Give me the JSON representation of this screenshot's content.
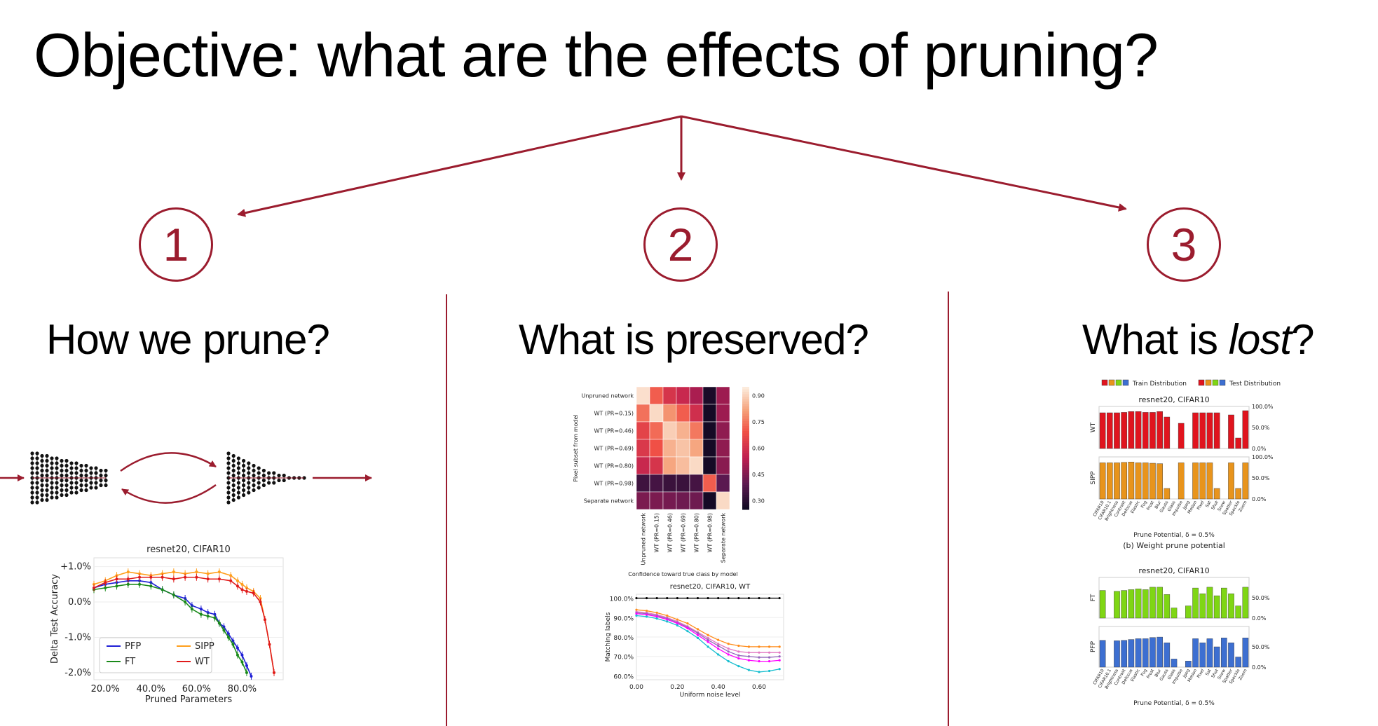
{
  "title": "Objective: what are the effects of pruning?",
  "accent_color": "#9b1c2e",
  "steps": [
    {
      "number": "1",
      "heading": "How we prune?"
    },
    {
      "number": "2",
      "heading": "What is preserved?"
    },
    {
      "number": "3",
      "heading_pre": "What is ",
      "heading_em": "lost",
      "heading_post": "?"
    }
  ],
  "icons": [
    "arrow-down-icon",
    "arrow-left-icon",
    "arrow-right-icon",
    "cycle-arrows-icon",
    "neural-network-icon"
  ],
  "chart_data": [
    {
      "type": "line",
      "title": "resnet20, CIFAR10",
      "xlabel": "Pruned Parameters",
      "ylabel": "Delta Test Accuracy",
      "xticks": [
        "20.0%",
        "40.0%",
        "60.0%",
        "80.0%"
      ],
      "yticks": [
        "+1.0%",
        "0.0%",
        "-1.0%",
        "-2.0%"
      ],
      "xlim": [
        15,
        98
      ],
      "ylim": [
        -2.2,
        1.25
      ],
      "legend": [
        "PFP",
        "SIPP",
        "FT",
        "WT"
      ],
      "legend_placement": "lower-left",
      "series": [
        {
          "name": "PFP",
          "color": "#1f1fd6",
          "x": [
            15,
            20,
            25,
            30,
            35,
            40,
            45,
            50,
            55,
            58,
            62,
            65,
            68,
            70,
            72,
            74,
            76,
            78,
            80,
            82,
            84
          ],
          "y": [
            0.4,
            0.5,
            0.55,
            0.6,
            0.6,
            0.55,
            0.35,
            0.2,
            0.1,
            -0.1,
            -0.2,
            -0.3,
            -0.35,
            -0.6,
            -0.7,
            -0.9,
            -1.1,
            -1.3,
            -1.5,
            -1.8,
            -2.1
          ]
        },
        {
          "name": "SIPP",
          "color": "#ff9f1c",
          "x": [
            15,
            20,
            25,
            30,
            35,
            40,
            45,
            50,
            55,
            60,
            65,
            70,
            75,
            78,
            80,
            82,
            85,
            88,
            90,
            92,
            94
          ],
          "y": [
            0.5,
            0.6,
            0.75,
            0.85,
            0.8,
            0.75,
            0.8,
            0.85,
            0.8,
            0.85,
            0.8,
            0.85,
            0.75,
            0.6,
            0.5,
            0.4,
            0.3,
            0.1,
            -0.5,
            -1.2,
            -2.0
          ]
        },
        {
          "name": "FT",
          "color": "#1a8a1a",
          "x": [
            15,
            20,
            25,
            30,
            35,
            40,
            45,
            50,
            55,
            58,
            62,
            65,
            68,
            70,
            72,
            74,
            76,
            78,
            80,
            82
          ],
          "y": [
            0.35,
            0.4,
            0.45,
            0.5,
            0.5,
            0.45,
            0.35,
            0.2,
            0.0,
            -0.2,
            -0.35,
            -0.4,
            -0.45,
            -0.6,
            -0.8,
            -1.0,
            -1.2,
            -1.5,
            -1.7,
            -2.0
          ]
        },
        {
          "name": "WT",
          "color": "#e01b1b",
          "x": [
            15,
            20,
            25,
            30,
            35,
            40,
            45,
            50,
            55,
            60,
            65,
            70,
            75,
            78,
            80,
            82,
            85,
            88,
            90,
            92,
            94
          ],
          "y": [
            0.4,
            0.55,
            0.65,
            0.65,
            0.7,
            0.7,
            0.7,
            0.65,
            0.7,
            0.7,
            0.65,
            0.65,
            0.6,
            0.45,
            0.35,
            0.3,
            0.25,
            0.0,
            -0.5,
            -1.2,
            -2.0
          ]
        }
      ]
    },
    {
      "type": "heatmap",
      "title": "",
      "rows": [
        "Unpruned network",
        "WT (PR=0.15)",
        "WT (PR=0.46)",
        "WT (PR=0.69)",
        "WT (PR=0.80)",
        "WT (PR=0.98)",
        "Separate network"
      ],
      "cols": [
        "Unpruned network",
        "WT (PR=0.15)",
        "WT (PR=0.46)",
        "WT (PR=0.69)",
        "WT (PR=0.80)",
        "WT (PR=0.98)",
        "Separate network"
      ],
      "xlabel": "Confidence toward true class by model",
      "ylabel": "Pixel subset from model",
      "colorbar_ticks": [
        "0.90",
        "0.75",
        "0.60",
        "0.45",
        "0.30"
      ],
      "vmin": 0.25,
      "vmax": 0.95,
      "values": [
        [
          0.93,
          0.72,
          0.62,
          0.58,
          0.52,
          0.28,
          0.5
        ],
        [
          0.75,
          0.92,
          0.8,
          0.72,
          0.6,
          0.27,
          0.5
        ],
        [
          0.66,
          0.74,
          0.9,
          0.85,
          0.76,
          0.27,
          0.48
        ],
        [
          0.63,
          0.7,
          0.85,
          0.88,
          0.83,
          0.27,
          0.48
        ],
        [
          0.58,
          0.62,
          0.83,
          0.87,
          0.92,
          0.27,
          0.47
        ],
        [
          0.35,
          0.36,
          0.34,
          0.34,
          0.36,
          0.72,
          0.4
        ],
        [
          0.45,
          0.45,
          0.44,
          0.43,
          0.43,
          0.27,
          0.92
        ]
      ]
    },
    {
      "type": "line",
      "title": "resnet20, CIFAR10, WT",
      "xlabel": "Uniform noise level",
      "ylabel": "Matching labels",
      "xticks": [
        "0.00",
        "0.20",
        "0.40",
        "0.60"
      ],
      "yticks": [
        "100.0%",
        "90.0%",
        "80.0%",
        "70.0%",
        "60.0%"
      ],
      "xlim": [
        0,
        0.72
      ],
      "ylim": [
        58,
        102
      ],
      "series": [
        {
          "color": "#000000",
          "x": [
            0,
            0.05,
            0.1,
            0.15,
            0.2,
            0.25,
            0.3,
            0.35,
            0.4,
            0.45,
            0.5,
            0.55,
            0.6,
            0.65,
            0.7
          ],
          "y": [
            100,
            100,
            100,
            100,
            100,
            100,
            100,
            100,
            100,
            100,
            100,
            100,
            100,
            100,
            100
          ]
        },
        {
          "color": "#ff8c1a",
          "x": [
            0,
            0.05,
            0.1,
            0.15,
            0.2,
            0.25,
            0.3,
            0.35,
            0.4,
            0.45,
            0.5,
            0.55,
            0.6,
            0.65,
            0.7
          ],
          "y": [
            94,
            93.5,
            92.5,
            91,
            89,
            87,
            84,
            81,
            78.5,
            76.5,
            75.5,
            75,
            75,
            75,
            75
          ]
        },
        {
          "color": "#e377c2",
          "x": [
            0,
            0.05,
            0.1,
            0.15,
            0.2,
            0.25,
            0.3,
            0.35,
            0.4,
            0.45,
            0.5,
            0.55,
            0.6,
            0.65,
            0.7
          ],
          "y": [
            93,
            92.5,
            91.5,
            90,
            88,
            85.5,
            82.5,
            79.5,
            76.5,
            74,
            72.5,
            72,
            72,
            72,
            72
          ]
        },
        {
          "color": "#9467bd",
          "x": [
            0,
            0.05,
            0.1,
            0.15,
            0.2,
            0.25,
            0.3,
            0.35,
            0.4,
            0.45,
            0.5,
            0.55,
            0.6,
            0.65,
            0.7
          ],
          "y": [
            92.5,
            92,
            91,
            89.5,
            87.5,
            85,
            82,
            78.5,
            75.5,
            72.5,
            70.5,
            70,
            69.5,
            69.5,
            70
          ]
        },
        {
          "color": "#ff00ff",
          "x": [
            0,
            0.05,
            0.1,
            0.15,
            0.2,
            0.25,
            0.3,
            0.35,
            0.4,
            0.45,
            0.5,
            0.55,
            0.6,
            0.65,
            0.7
          ],
          "y": [
            92,
            91.5,
            90.5,
            89,
            87,
            84.5,
            81,
            77.5,
            74,
            71,
            69,
            68,
            67.5,
            67.5,
            68
          ]
        },
        {
          "color": "#17becf",
          "x": [
            0,
            0.05,
            0.1,
            0.15,
            0.2,
            0.25,
            0.3,
            0.35,
            0.4,
            0.45,
            0.5,
            0.55,
            0.6,
            0.65,
            0.7
          ],
          "y": [
            91,
            90.5,
            89.5,
            88,
            86,
            83,
            79.5,
            75,
            71,
            67.5,
            65,
            63,
            62,
            62.5,
            63.5
          ]
        }
      ]
    },
    {
      "type": "bar",
      "title": "resnet20, CIFAR10",
      "legend": [
        "Train Distribution",
        "Test Distribution"
      ],
      "rows": [
        "WT",
        "SIPP"
      ],
      "yticks": [
        "100.0%",
        "50.0%",
        "0.0%"
      ],
      "xlabel": "Prune Potential, δ = 0.5%",
      "caption": "(b) Weight prune potential",
      "categories": [
        "CIFAR10",
        "CIFAR10.1",
        "Brightness",
        "Contrast",
        "Defocus",
        "Elastic",
        "Fog",
        "Frost",
        "Blur",
        "Gauss",
        "Glass",
        "Impulse",
        "Jpeg",
        "Motion",
        "Pixel",
        "Sat",
        "Shot",
        "Snow",
        "Spatter",
        "Speckle",
        "Zoom"
      ],
      "series": [
        {
          "name": "WT",
          "color": "#e0141e",
          "values": [
            85,
            85,
            85,
            86,
            88,
            88,
            86,
            86,
            88,
            75,
            0,
            60,
            0,
            85,
            85,
            85,
            85,
            0,
            80,
            25,
            90
          ]
        },
        {
          "name": "SIPP",
          "color": "#e8941c",
          "values": [
            86,
            86,
            86,
            87,
            88,
            86,
            86,
            85,
            84,
            25,
            0,
            86,
            0,
            86,
            86,
            86,
            25,
            0,
            86,
            25,
            86
          ]
        }
      ]
    },
    {
      "type": "bar",
      "title": "resnet20, CIFAR10",
      "rows": [
        "FT",
        "PFP"
      ],
      "yticks": [
        "50.0%",
        "0.0%"
      ],
      "xlabel": "Prune Potential, δ = 0.5%",
      "categories": [
        "CIFAR10",
        "CIFAR10.1",
        "Brightness",
        "Contrast",
        "Defocus",
        "Elastic",
        "Fog",
        "Frost",
        "Blur",
        "Gauss",
        "Glass",
        "Impulse",
        "Jpeg",
        "Motion",
        "Pixel",
        "Sat",
        "Shot",
        "Snow",
        "Spatter",
        "Speckle",
        "Zoom"
      ],
      "series": [
        {
          "name": "FT",
          "color": "#7fd614",
          "values": [
            68,
            0,
            66,
            68,
            70,
            72,
            70,
            76,
            76,
            58,
            25,
            0,
            30,
            74,
            60,
            76,
            55,
            74,
            60,
            30,
            76
          ]
        },
        {
          "name": "PFP",
          "color": "#3d6fd1",
          "values": [
            66,
            0,
            65,
            66,
            68,
            70,
            70,
            73,
            74,
            60,
            20,
            0,
            15,
            70,
            60,
            70,
            50,
            72,
            60,
            25,
            72
          ]
        }
      ]
    }
  ]
}
